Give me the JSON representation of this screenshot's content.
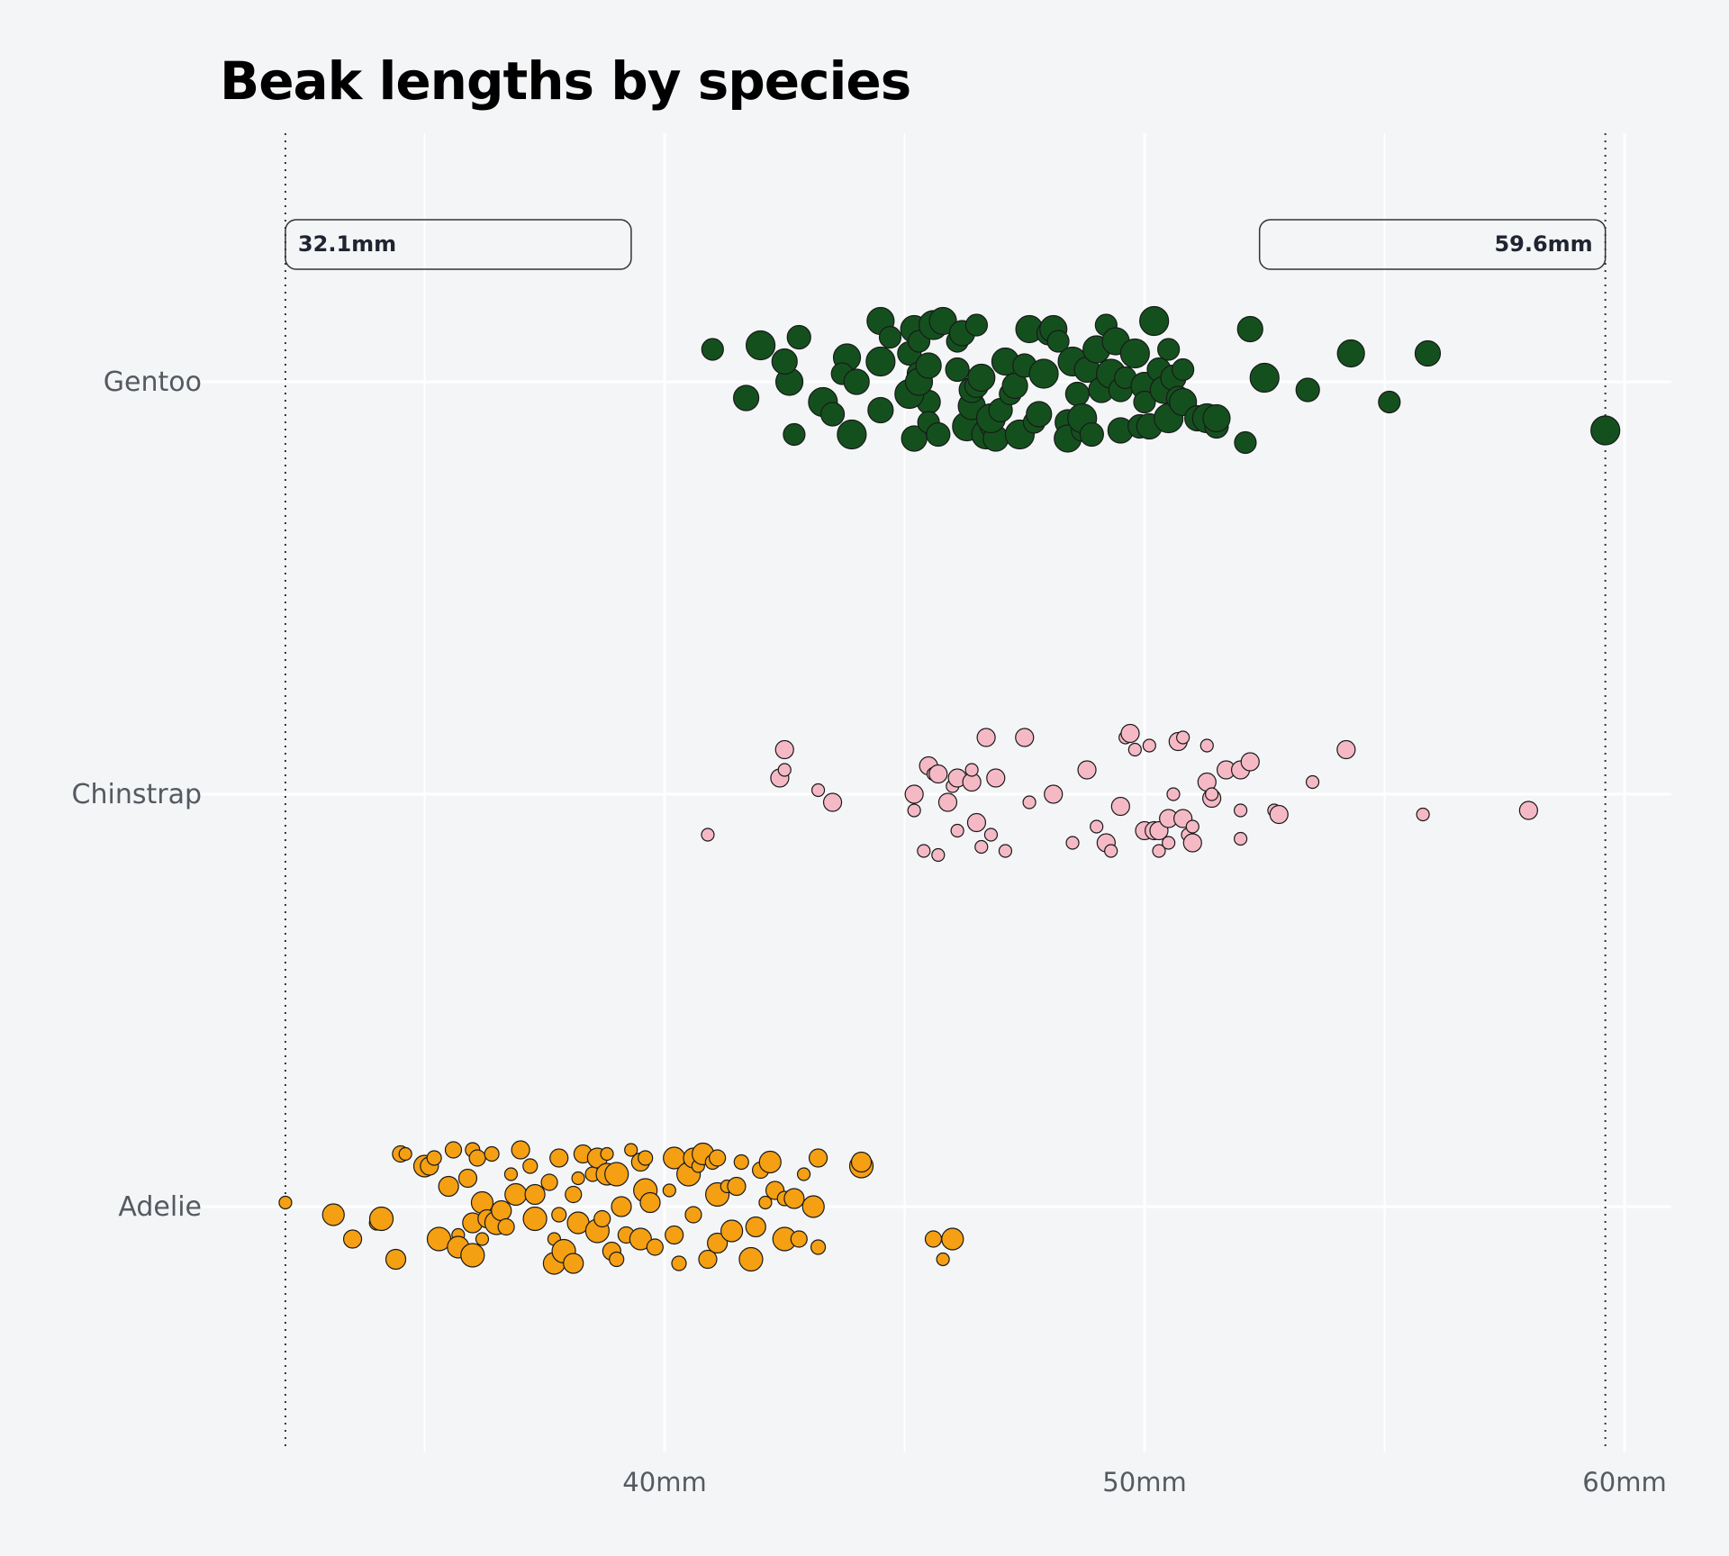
{
  "chart_data": {
    "type": "scatter",
    "title": "Beak lengths by species",
    "xlabel": "",
    "ylabel": "",
    "xlim": [
      30.8,
      62.0
    ],
    "x_ticks": [
      {
        "value": 40,
        "label": "40mm"
      },
      {
        "value": 50,
        "label": "50mm"
      },
      {
        "value": 60,
        "label": "60mm"
      }
    ],
    "x_minor_gridlines": [
      35,
      45,
      55
    ],
    "categories": [
      "Gentoo",
      "Chinstrap",
      "Adelie"
    ],
    "grid": true,
    "legend": "none",
    "annotations": [
      {
        "value": 32.1,
        "label": "32.1mm",
        "side": "left"
      },
      {
        "value": 59.6,
        "label": "59.6mm",
        "side": "right"
      }
    ],
    "series": [
      {
        "category": "Gentoo",
        "color": "#14501e",
        "points": [
          [
            41.0,
            -0.8
          ],
          [
            41.7,
            0.4
          ],
          [
            42.0,
            -0.9
          ],
          [
            42.8,
            -1.1
          ],
          [
            42.6,
            0.0
          ],
          [
            42.7,
            1.3
          ],
          [
            42.5,
            -0.5
          ],
          [
            43.3,
            0.5
          ],
          [
            43.5,
            0.8
          ],
          [
            43.8,
            -0.6
          ],
          [
            43.7,
            -0.2
          ],
          [
            44.0,
            0.0
          ],
          [
            43.9,
            1.3
          ],
          [
            45.5,
            0.5
          ],
          [
            44.5,
            -1.5
          ],
          [
            44.7,
            -1.1
          ],
          [
            44.5,
            0.7
          ],
          [
            44.5,
            -0.5
          ],
          [
            45.1,
            -0.7
          ],
          [
            45.2,
            -1.3
          ],
          [
            45.3,
            -1.0
          ],
          [
            45.2,
            1.4
          ],
          [
            45.1,
            0.3
          ],
          [
            45.3,
            -0.2
          ],
          [
            45.3,
            0.0
          ],
          [
            45.5,
            1.0
          ],
          [
            45.5,
            -0.4
          ],
          [
            45.6,
            -1.4
          ],
          [
            45.7,
            1.3
          ],
          [
            45.8,
            -1.5
          ],
          [
            46.1,
            -1.0
          ],
          [
            46.2,
            -1.2
          ],
          [
            46.3,
            1.1
          ],
          [
            46.1,
            -0.3
          ],
          [
            46.4,
            0.6
          ],
          [
            46.5,
            -1.4
          ],
          [
            46.4,
            0.2
          ],
          [
            46.7,
            1.3
          ],
          [
            46.5,
            0.1
          ],
          [
            46.6,
            -0.1
          ],
          [
            46.8,
            1.1
          ],
          [
            46.9,
            1.4
          ],
          [
            46.8,
            0.9
          ],
          [
            47.0,
            0.7
          ],
          [
            47.1,
            -0.5
          ],
          [
            47.2,
            0.3
          ],
          [
            47.3,
            0.1
          ],
          [
            47.4,
            1.3
          ],
          [
            47.5,
            -0.4
          ],
          [
            47.6,
            -1.3
          ],
          [
            47.7,
            1.0
          ],
          [
            47.8,
            0.8
          ],
          [
            47.9,
            -0.2
          ],
          [
            48.0,
            -1.2
          ],
          [
            48.1,
            -1.3
          ],
          [
            48.2,
            -1.0
          ],
          [
            48.4,
            1.0
          ],
          [
            48.5,
            -0.5
          ],
          [
            48.6,
            0.3
          ],
          [
            48.4,
            1.4
          ],
          [
            48.7,
            1.2
          ],
          [
            48.8,
            -0.3
          ],
          [
            48.7,
            0.9
          ],
          [
            48.9,
            1.3
          ],
          [
            49.0,
            -0.8
          ],
          [
            49.2,
            -1.4
          ],
          [
            49.1,
            0.2
          ],
          [
            49.3,
            -0.2
          ],
          [
            49.5,
            0.2
          ],
          [
            49.4,
            -1.0
          ],
          [
            49.6,
            -0.1
          ],
          [
            49.5,
            1.2
          ],
          [
            49.8,
            -0.7
          ],
          [
            49.9,
            1.1
          ],
          [
            50.0,
            0.1
          ],
          [
            50.0,
            0.5
          ],
          [
            50.1,
            1.1
          ],
          [
            50.2,
            -1.5
          ],
          [
            50.3,
            -0.3
          ],
          [
            50.4,
            0.2
          ],
          [
            50.5,
            -0.8
          ],
          [
            50.6,
            -0.1
          ],
          [
            50.5,
            0.9
          ],
          [
            50.7,
            0.4
          ],
          [
            50.8,
            0.5
          ],
          [
            50.8,
            -0.3
          ],
          [
            51.1,
            0.9
          ],
          [
            51.3,
            0.9
          ],
          [
            51.5,
            1.1
          ],
          [
            51.5,
            0.9
          ],
          [
            52.1,
            1.5
          ],
          [
            52.2,
            -1.3
          ],
          [
            52.5,
            -0.1
          ],
          [
            53.4,
            0.2
          ],
          [
            54.3,
            -0.7
          ],
          [
            55.1,
            0.5
          ],
          [
            55.9,
            -0.7
          ],
          [
            59.6,
            1.2
          ]
        ]
      },
      {
        "category": "Chinstrap",
        "color": "#f5b9c5",
        "points": [
          [
            40.9,
            1.0
          ],
          [
            42.4,
            -0.4
          ],
          [
            42.5,
            -0.6
          ],
          [
            42.5,
            -1.1
          ],
          [
            43.2,
            -0.1
          ],
          [
            43.5,
            0.2
          ],
          [
            45.2,
            0.4
          ],
          [
            45.2,
            0.0
          ],
          [
            45.4,
            1.4
          ],
          [
            45.5,
            -0.7
          ],
          [
            45.6,
            -0.5
          ],
          [
            45.7,
            -0.5
          ],
          [
            45.7,
            1.5
          ],
          [
            45.9,
            0.2
          ],
          [
            46.0,
            -0.2
          ],
          [
            46.1,
            -0.4
          ],
          [
            46.1,
            0.9
          ],
          [
            46.4,
            -0.3
          ],
          [
            46.4,
            -0.6
          ],
          [
            46.5,
            0.7
          ],
          [
            46.6,
            1.3
          ],
          [
            46.7,
            -1.4
          ],
          [
            46.8,
            1.0
          ],
          [
            46.9,
            -0.4
          ],
          [
            47.1,
            1.4
          ],
          [
            47.5,
            -1.4
          ],
          [
            47.6,
            0.2
          ],
          [
            48.1,
            0.0
          ],
          [
            48.5,
            1.2
          ],
          [
            48.8,
            -0.6
          ],
          [
            49.0,
            0.8
          ],
          [
            49.2,
            1.2
          ],
          [
            49.3,
            1.4
          ],
          [
            49.5,
            0.3
          ],
          [
            49.6,
            -1.4
          ],
          [
            49.7,
            -1.5
          ],
          [
            49.8,
            -1.1
          ],
          [
            50.0,
            0.9
          ],
          [
            50.1,
            -1.2
          ],
          [
            50.2,
            0.9
          ],
          [
            50.3,
            1.4
          ],
          [
            50.3,
            0.9
          ],
          [
            50.5,
            1.2
          ],
          [
            50.5,
            0.6
          ],
          [
            50.6,
            0.0
          ],
          [
            50.7,
            -1.3
          ],
          [
            50.8,
            -1.4
          ],
          [
            50.8,
            0.6
          ],
          [
            50.9,
            1.0
          ],
          [
            51.0,
            1.2
          ],
          [
            51.0,
            0.8
          ],
          [
            51.3,
            -0.3
          ],
          [
            51.3,
            -1.2
          ],
          [
            51.4,
            0.1
          ],
          [
            51.4,
            0.0
          ],
          [
            51.7,
            -0.6
          ],
          [
            52.0,
            0.4
          ],
          [
            52.0,
            -0.6
          ],
          [
            52.0,
            1.1
          ],
          [
            52.2,
            -0.8
          ],
          [
            52.7,
            0.4
          ],
          [
            52.8,
            0.5
          ],
          [
            53.5,
            -0.3
          ],
          [
            54.2,
            -1.1
          ],
          [
            55.8,
            0.5
          ],
          [
            58.0,
            0.4
          ]
        ]
      },
      {
        "category": "Adelie",
        "color": "#f59f13",
        "points": [
          [
            32.1,
            -0.1
          ],
          [
            33.1,
            0.2
          ],
          [
            33.5,
            0.8
          ],
          [
            34.0,
            0.4
          ],
          [
            34.1,
            0.3
          ],
          [
            34.4,
            1.3
          ],
          [
            34.5,
            -1.3
          ],
          [
            34.6,
            -1.3
          ],
          [
            35.0,
            -1.0
          ],
          [
            35.1,
            -1.0
          ],
          [
            35.2,
            -1.2
          ],
          [
            35.3,
            0.8
          ],
          [
            35.5,
            -0.5
          ],
          [
            35.6,
            -1.4
          ],
          [
            35.7,
            0.7
          ],
          [
            35.7,
            1.0
          ],
          [
            35.9,
            -0.7
          ],
          [
            36.0,
            -1.4
          ],
          [
            36.0,
            1.2
          ],
          [
            36.0,
            0.4
          ],
          [
            36.1,
            -1.2
          ],
          [
            36.2,
            0.8
          ],
          [
            36.2,
            -0.1
          ],
          [
            36.3,
            0.3
          ],
          [
            36.4,
            -1.3
          ],
          [
            36.5,
            0.4
          ],
          [
            36.6,
            0.1
          ],
          [
            36.7,
            0.5
          ],
          [
            36.8,
            -0.8
          ],
          [
            36.9,
            -0.3
          ],
          [
            37.0,
            -1.4
          ],
          [
            37.2,
            -1.0
          ],
          [
            37.3,
            0.3
          ],
          [
            37.3,
            -0.3
          ],
          [
            37.6,
            -0.6
          ],
          [
            37.7,
            0.8
          ],
          [
            37.7,
            1.4
          ],
          [
            37.8,
            -1.2
          ],
          [
            37.8,
            0.2
          ],
          [
            37.9,
            1.1
          ],
          [
            38.1,
            1.4
          ],
          [
            38.1,
            -0.3
          ],
          [
            38.2,
            -0.7
          ],
          [
            38.2,
            0.4
          ],
          [
            38.3,
            -1.3
          ],
          [
            38.5,
            -0.8
          ],
          [
            38.6,
            0.6
          ],
          [
            38.6,
            -1.2
          ],
          [
            38.7,
            0.3
          ],
          [
            38.8,
            -1.3
          ],
          [
            38.8,
            -0.8
          ],
          [
            38.9,
            1.1
          ],
          [
            39.0,
            1.3
          ],
          [
            39.0,
            -0.8
          ],
          [
            39.1,
            0.0
          ],
          [
            39.2,
            0.7
          ],
          [
            39.3,
            -1.4
          ],
          [
            39.5,
            0.8
          ],
          [
            39.5,
            -1.1
          ],
          [
            39.6,
            -1.2
          ],
          [
            39.6,
            -0.4
          ],
          [
            39.7,
            -0.1
          ],
          [
            39.8,
            1.0
          ],
          [
            40.1,
            -0.4
          ],
          [
            40.2,
            -1.2
          ],
          [
            40.2,
            0.7
          ],
          [
            40.3,
            1.4
          ],
          [
            40.5,
            -0.8
          ],
          [
            40.6,
            -1.2
          ],
          [
            40.6,
            0.2
          ],
          [
            40.7,
            -1.0
          ],
          [
            40.8,
            -1.3
          ],
          [
            40.9,
            1.3
          ],
          [
            41.0,
            -1.1
          ],
          [
            41.1,
            -0.3
          ],
          [
            41.1,
            0.9
          ],
          [
            41.1,
            -1.2
          ],
          [
            41.3,
            -0.5
          ],
          [
            41.4,
            0.6
          ],
          [
            41.5,
            -0.5
          ],
          [
            41.6,
            -1.1
          ],
          [
            41.8,
            1.3
          ],
          [
            41.9,
            0.5
          ],
          [
            42.0,
            -0.9
          ],
          [
            42.1,
            -0.1
          ],
          [
            42.2,
            -1.1
          ],
          [
            42.3,
            -0.4
          ],
          [
            42.5,
            -0.2
          ],
          [
            42.5,
            0.8
          ],
          [
            42.7,
            -0.2
          ],
          [
            42.8,
            0.8
          ],
          [
            42.9,
            -0.8
          ],
          [
            43.1,
            0.0
          ],
          [
            43.2,
            -1.2
          ],
          [
            43.2,
            1.0
          ],
          [
            44.1,
            -1.0
          ],
          [
            44.1,
            -1.1
          ],
          [
            45.6,
            0.8
          ],
          [
            45.8,
            1.3
          ],
          [
            46.0,
            0.8
          ]
        ]
      }
    ]
  }
}
